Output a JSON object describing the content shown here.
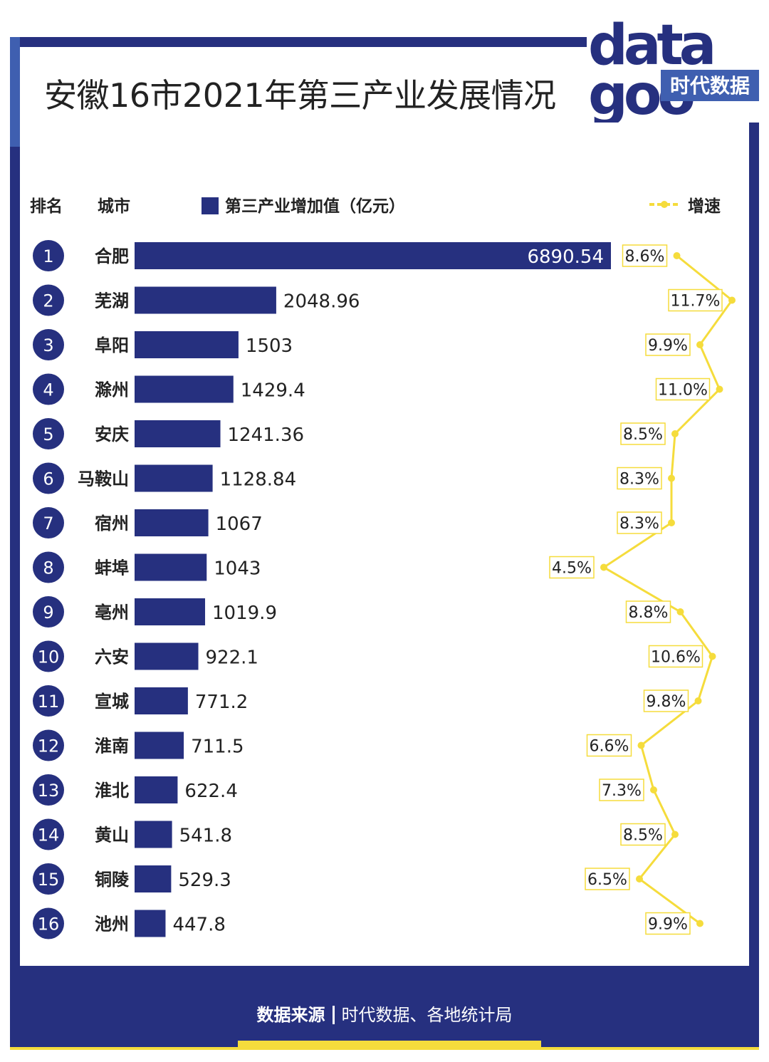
{
  "title": "安徽16市2021年第三产业发展情况",
  "logo": {
    "text_top": "data",
    "text_bottom": "goo",
    "badge": "时代数据"
  },
  "header": {
    "rank_label": "排名",
    "city_label": "城市",
    "bar_legend": "第三产业增加值（亿元）",
    "line_legend": "增速"
  },
  "colors": {
    "bar": "#26307f",
    "line": "#f5dc3c",
    "frame": "#26307f"
  },
  "chart_data": {
    "type": "bar",
    "orientation": "horizontal",
    "ranks": [
      "1",
      "2",
      "3",
      "4",
      "5",
      "6",
      "7",
      "8",
      "9",
      "10",
      "11",
      "12",
      "13",
      "14",
      "15",
      "16"
    ],
    "categories": [
      "合肥",
      "芜湖",
      "阜阳",
      "滁州",
      "安庆",
      "马鞍山",
      "宿州",
      "蚌埠",
      "亳州",
      "六安",
      "宣城",
      "淮南",
      "淮北",
      "黄山",
      "铜陵",
      "池州"
    ],
    "series": [
      {
        "name": "第三产业增加值（亿元）",
        "type": "bar",
        "values": [
          6890.54,
          2048.96,
          1503,
          1429.4,
          1241.36,
          1128.84,
          1067,
          1043,
          1019.9,
          922.1,
          771.2,
          711.5,
          622.4,
          541.8,
          529.3,
          447.8
        ],
        "labels": [
          "6890.54",
          "2048.96",
          "1503",
          "1429.4",
          "1241.36",
          "1128.84",
          "1067",
          "1043",
          "1019.9",
          "922.1",
          "771.2",
          "711.5",
          "622.4",
          "541.8",
          "529.3",
          "447.8"
        ]
      },
      {
        "name": "增速",
        "type": "line",
        "values": [
          8.6,
          11.7,
          9.9,
          11.0,
          8.5,
          8.3,
          8.3,
          4.5,
          8.8,
          10.6,
          9.8,
          6.6,
          7.3,
          8.5,
          6.5,
          9.9
        ],
        "labels": [
          "8.6%",
          "11.7%",
          "9.9%",
          "11.0%",
          "8.5%",
          "8.3%",
          "8.3%",
          "4.5%",
          "8.8%",
          "10.6%",
          "9.8%",
          "6.6%",
          "7.3%",
          "8.5%",
          "6.5%",
          "9.9%"
        ]
      }
    ]
  },
  "footer": {
    "source_label": "数据来源",
    "source_text": "时代数据、各地统计局"
  }
}
